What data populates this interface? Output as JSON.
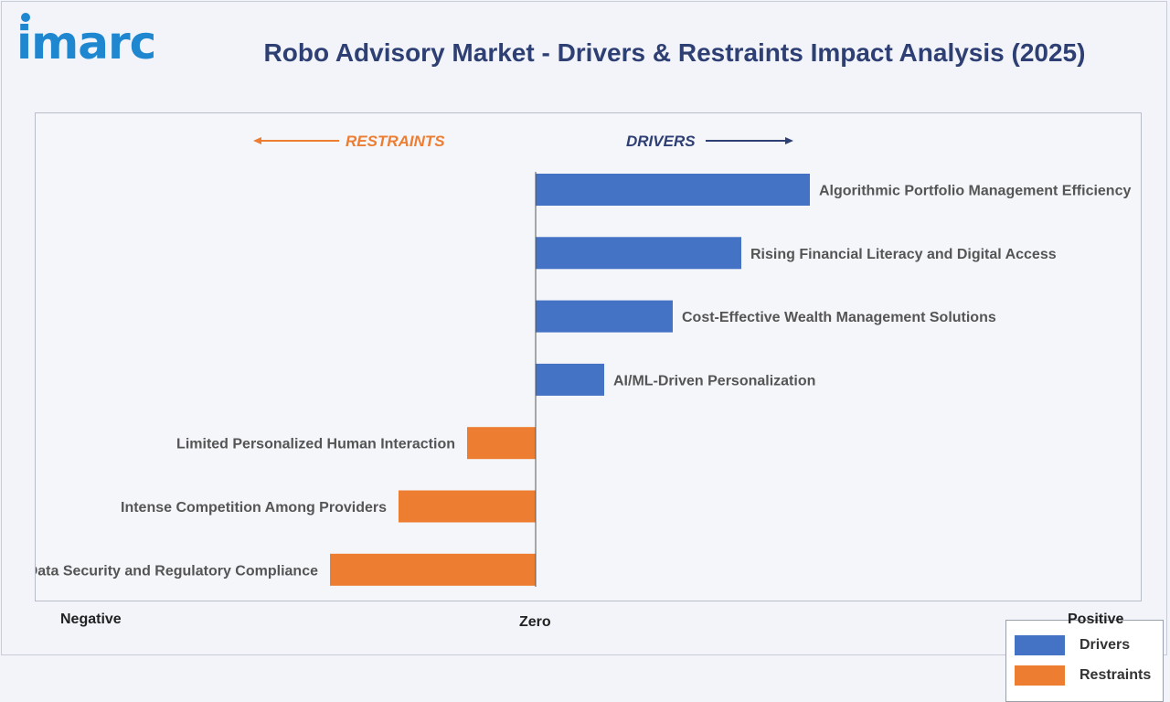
{
  "brand": {
    "logo_text": "imarc",
    "color": "#1f86d0"
  },
  "title": "Robo Advisory Market - Drivers & Restraints Impact Analysis (2025)",
  "chart_data": {
    "type": "bar",
    "orientation": "horizontal",
    "direction_labels": {
      "left": "RESTRAINTS",
      "right": "DRIVERS"
    },
    "axis_labels": {
      "negative": "Negative",
      "zero": "Zero",
      "positive": "Positive"
    },
    "xlim": [
      -5,
      6
    ],
    "series": [
      {
        "name": "Drivers",
        "color": "#4472c4"
      },
      {
        "name": "Restraints",
        "color": "#ed7d31"
      }
    ],
    "categories": [
      "Algorithmic Portfolio Management Efficiency",
      "Rising Financial Literacy and Digital Access",
      "Cost-Effective Wealth Management Solutions",
      "AI/ML-Driven Personalization",
      "Limited Personalized Human Interaction",
      "Intense Competition Among Providers",
      "Data Security and Regulatory Compliance"
    ],
    "values": [
      4,
      3,
      2,
      1,
      -1,
      -2,
      -3
    ],
    "legend_position": "bottom-right",
    "grid": false
  }
}
